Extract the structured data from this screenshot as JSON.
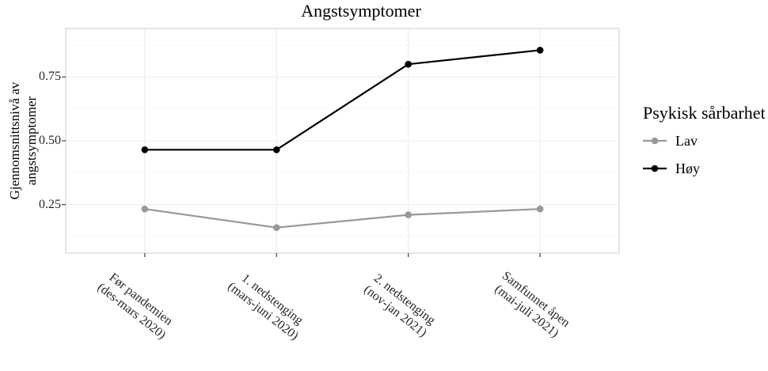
{
  "chart_data": {
    "type": "line",
    "title": "Angstsymptomer",
    "xlabel": "",
    "ylabel": "Gjennomsnittsnivå av angstsymptomer",
    "ylabel_lines": [
      "Gjennomsnittsnivå av",
      "angstsymptomer"
    ],
    "categories": [
      "Før pandemien (des-mars 2020)",
      "1. nedstenging (mars-juni 2020)",
      "2. nedstenging (nov-jan 2021)",
      "Samfunnet åpen (mai-juli 2021)"
    ],
    "category_lines": [
      [
        "Før pandemien",
        "(des-mars 2020)"
      ],
      [
        "1. nedstenging",
        "(mars-juni 2020)"
      ],
      [
        "2. nedstenging",
        "(nov-jan 2021)"
      ],
      [
        "Samfunnet åpen",
        "(mai-juli 2021)"
      ]
    ],
    "series": [
      {
        "name": "Lav",
        "color": "#999999",
        "values": [
          0.233,
          0.16,
          0.21,
          0.233
        ]
      },
      {
        "name": "Høy",
        "color": "#000000",
        "values": [
          0.465,
          0.465,
          0.8,
          0.855
        ]
      }
    ],
    "y_ticks": [
      0.25,
      0.5,
      0.75
    ],
    "y_tick_labels": [
      "0.25",
      "0.50",
      "0.75"
    ],
    "y_minor_ticks": [
      0.125,
      0.375,
      0.625,
      0.875
    ],
    "ylim": [
      0.06,
      0.94
    ],
    "legend": {
      "title": "Psykisk sårbarhet",
      "position": "right",
      "items": [
        {
          "label": "Lav",
          "color": "#999999"
        },
        {
          "label": "Høy",
          "color": "#000000"
        }
      ]
    },
    "grid": {
      "horizontal_major": true,
      "horizontal_minor": true,
      "vertical_major": true
    },
    "colors": {
      "grid_major": "#ececec",
      "grid_minor": "#f6f6f6",
      "panel_border": "#d4d4d4",
      "tick_mark": "#333333",
      "axis_text": "#262626"
    }
  }
}
